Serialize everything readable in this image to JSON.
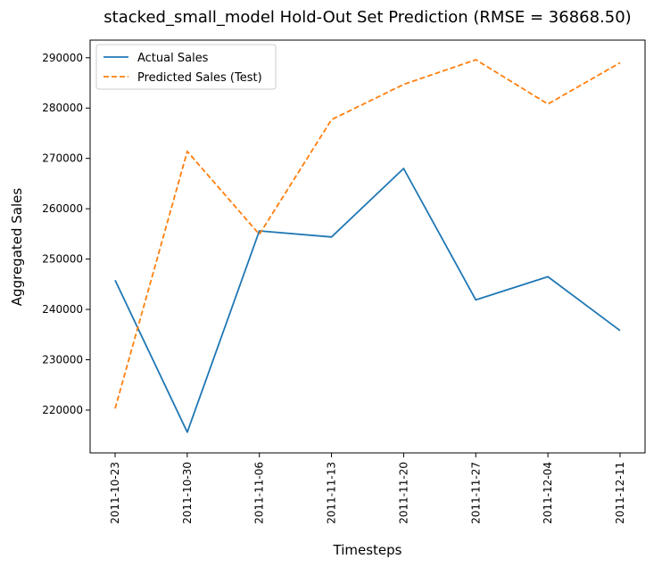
{
  "chart_data": {
    "type": "line",
    "title": "stacked_small_model Hold-Out Set Prediction (RMSE = 36868.50)",
    "xlabel": "Timesteps",
    "ylabel": "Aggregated Sales",
    "categories": [
      "2011-10-23",
      "2011-10-30",
      "2011-11-06",
      "2011-11-13",
      "2011-11-20",
      "2011-11-27",
      "2011-12-04",
      "2011-12-11"
    ],
    "yticks": [
      220000,
      230000,
      240000,
      250000,
      260000,
      270000,
      280000,
      290000
    ],
    "ylim": [
      211500,
      293500
    ],
    "grid": false,
    "legend_position": "top-left",
    "series": [
      {
        "name": "Actual Sales",
        "color": "#1f77b4",
        "style": "solid",
        "values": [
          245800,
          215600,
          255600,
          254400,
          268000,
          241900,
          246500,
          235800
        ]
      },
      {
        "name": "Predicted Sales (Test)",
        "color": "#ff7f0e",
        "style": "dashed",
        "values": [
          220300,
          271400,
          254900,
          277700,
          284700,
          289600,
          280800,
          289000
        ]
      }
    ]
  }
}
